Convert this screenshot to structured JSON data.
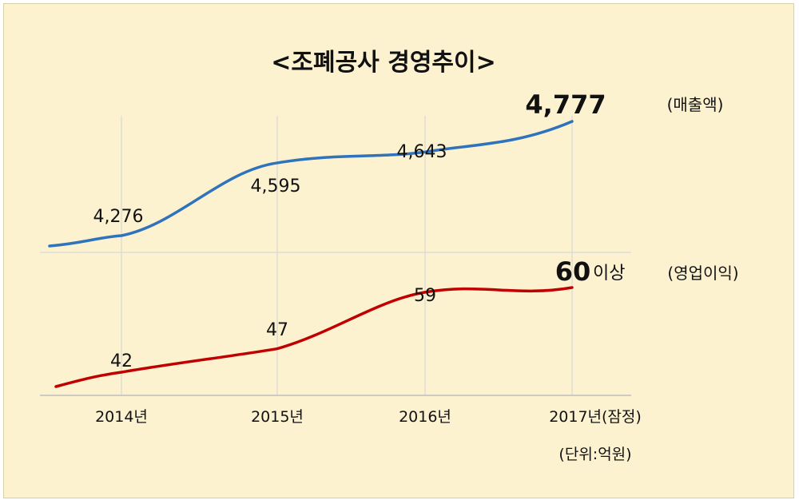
{
  "chart_data": {
    "type": "line",
    "title": "<조폐공사 경영추이>",
    "categories": [
      "2014년",
      "2015년",
      "2016년",
      "2017년(잠정)"
    ],
    "unit_note": "(단위:억원)",
    "colors": {
      "revenue": "#2e73bb",
      "profit": "#c00000",
      "background": "#fdf2d0"
    },
    "grid": "vertical and one horizontal separator",
    "series": [
      {
        "name": "(매출액)",
        "values": [
          4276,
          4595,
          4643,
          4777
        ],
        "labels": [
          "4,276",
          "4,595",
          "4,643",
          "4,777"
        ]
      },
      {
        "name": "(영업이익)",
        "values": [
          42,
          47,
          59,
          60
        ],
        "labels": [
          "42",
          "47",
          "59",
          "60"
        ],
        "last_suffix": "이상"
      }
    ]
  }
}
